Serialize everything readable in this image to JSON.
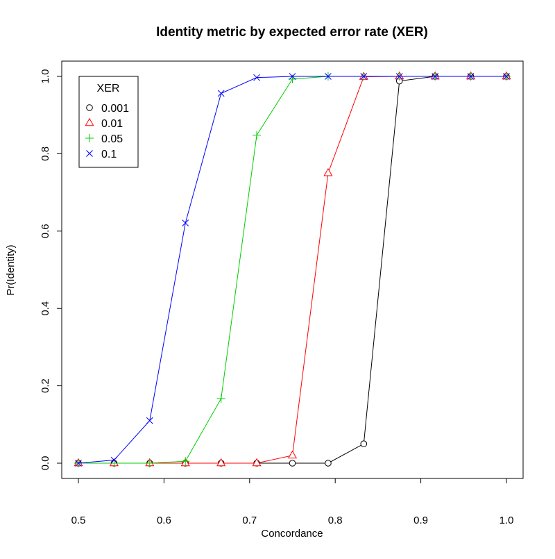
{
  "chart_data": {
    "type": "line",
    "title": "Identity metric by expected error rate (XER)",
    "xlabel": "Concordance",
    "ylabel": "Pr(Identity)",
    "xlim": [
      0.5,
      1.0
    ],
    "ylim": [
      0.0,
      1.0
    ],
    "xticks": [
      "0.5",
      "0.6",
      "0.7",
      "0.8",
      "0.9",
      "1.0"
    ],
    "yticks": [
      "0.0",
      "0.2",
      "0.4",
      "0.6",
      "0.8",
      "1.0"
    ],
    "grid": false,
    "legend": {
      "title": "XER",
      "position": "top-left"
    },
    "x": [
      0.5,
      0.5417,
      0.5833,
      0.625,
      0.6667,
      0.7083,
      0.75,
      0.7917,
      0.8333,
      0.875,
      0.9167,
      0.9583,
      1.0
    ],
    "series": [
      {
        "name": "0.001",
        "color": "#000000",
        "marker": "circle",
        "values": [
          0,
          0,
          0,
          0,
          0,
          0,
          0,
          0,
          0.05,
          0.988,
          1.0,
          1.0,
          1.0
        ]
      },
      {
        "name": "0.01",
        "color": "#ff0000",
        "marker": "triangle",
        "values": [
          0,
          0,
          0,
          0,
          0,
          0,
          0.02,
          0.75,
          0.999,
          1.0,
          1.0,
          1.0,
          1.0
        ]
      },
      {
        "name": "0.05",
        "color": "#00cd00",
        "marker": "plus",
        "values": [
          0,
          0,
          0,
          0.005,
          0.167,
          0.848,
          0.993,
          1.0,
          1.0,
          1.0,
          1.0,
          1.0,
          1.0
        ]
      },
      {
        "name": "0.1",
        "color": "#0000ff",
        "marker": "cross",
        "values": [
          0,
          0.008,
          0.11,
          0.621,
          0.956,
          0.997,
          1.0,
          1.0,
          1.0,
          1.0,
          1.0,
          1.0,
          1.0
        ]
      }
    ]
  }
}
